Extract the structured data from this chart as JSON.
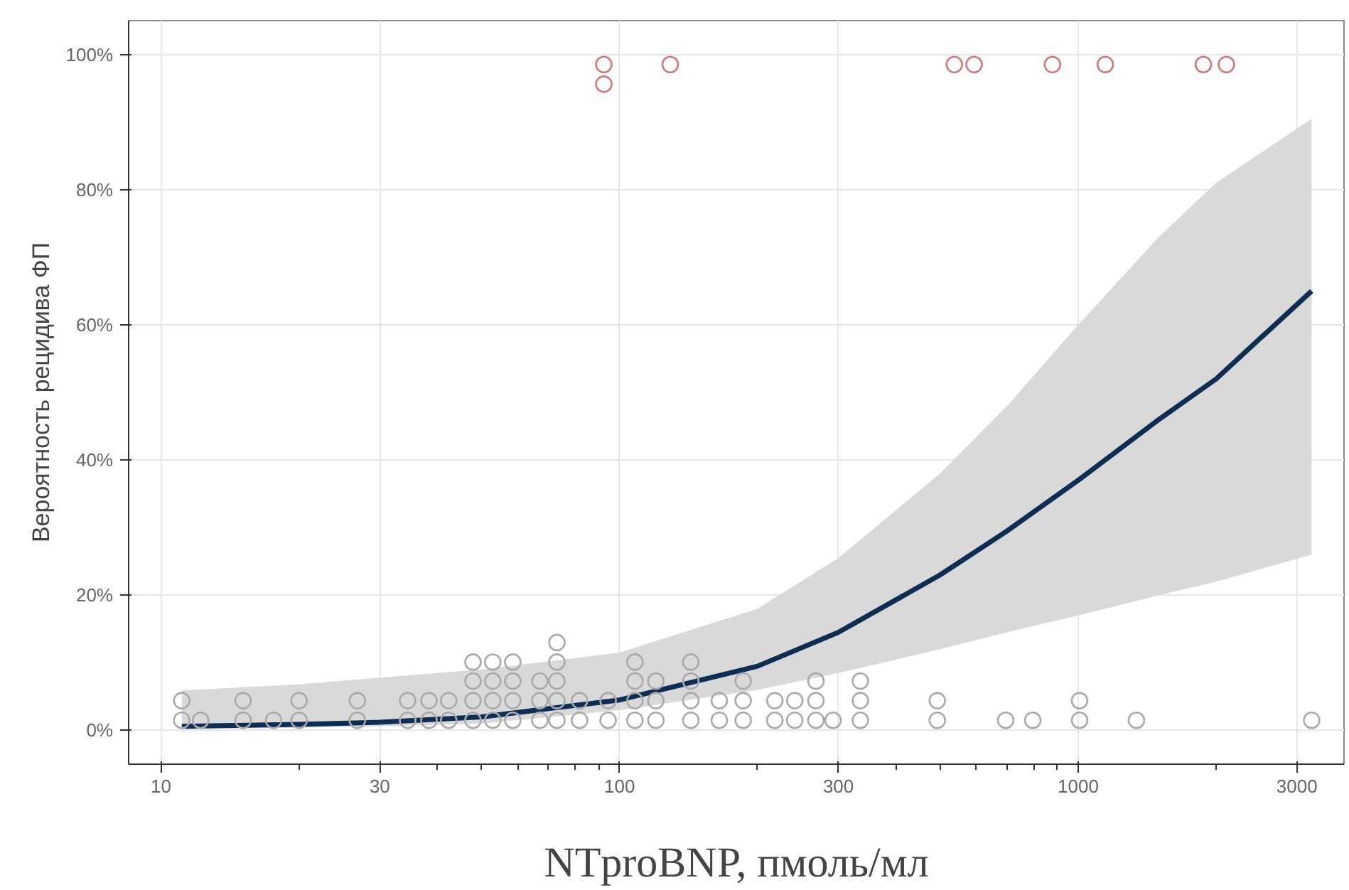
{
  "chart_data": {
    "type": "scatter",
    "xlabel": "NTproBNP, пмоль/мл",
    "ylabel": "Вероятность рецидива ФП",
    "log": "x",
    "grid": true,
    "xlim": [
      8.5,
      3800
    ],
    "xticks": [
      10,
      30,
      100,
      300,
      1000,
      3000,
      {
        "value": 20,
        "label": null
      },
      {
        "value": 40,
        "label": null
      },
      {
        "value": 50,
        "label": null
      },
      {
        "value": 60,
        "label": null
      },
      {
        "value": 70,
        "label": null
      },
      {
        "value": 80,
        "label": null
      },
      {
        "value": 90,
        "label": null
      },
      {
        "value": 200,
        "label": null
      },
      {
        "value": 400,
        "label": null
      },
      {
        "value": 500,
        "label": null
      },
      {
        "value": 600,
        "label": null
      },
      {
        "value": 700,
        "label": null
      },
      {
        "value": 800,
        "label": null
      },
      {
        "value": 900,
        "label": null
      },
      {
        "value": 2000,
        "label": null
      }
    ],
    "ylim": [
      -5,
      105
    ],
    "yticks": [
      {
        "value": 0,
        "label": "0%"
      },
      {
        "value": 20,
        "label": "20%"
      },
      {
        "value": 40,
        "label": "40%"
      },
      {
        "value": 60,
        "label": "60%"
      },
      {
        "value": 80,
        "label": "80%"
      },
      {
        "value": 100,
        "label": "100%"
      }
    ],
    "series": [
      {
        "color": "#aaaaaa",
        "marker": "circle",
        "x": [
          11.1,
          11.1,
          12.2,
          15.1,
          15.1,
          17.6,
          20.0,
          20.0,
          26.8,
          26.8,
          34.5,
          34.5,
          38.4,
          38.4,
          42.4,
          42.4,
          47.9,
          47.9,
          47.9,
          47.9,
          52.9,
          52.9,
          52.9,
          52.9,
          58.5,
          58.5,
          58.5,
          58.5,
          67.0,
          67.0,
          67.0,
          73.0,
          73.0,
          73.0,
          73.0,
          73.0,
          81.8,
          81.8,
          94.4,
          94.4,
          108,
          108,
          108,
          108,
          120,
          120,
          120,
          143,
          143,
          143,
          143,
          165,
          165,
          186,
          186,
          186,
          218,
          218,
          241,
          241,
          268,
          268,
          268,
          292,
          335,
          335,
          335,
          493,
          493,
          695,
          796,
          1007,
          1007,
          1340,
          3230
        ],
        "values": [
          1.5,
          4.4,
          1.5,
          1.5,
          4.4,
          1.5,
          1.5,
          4.4,
          1.5,
          4.4,
          1.5,
          4.4,
          1.5,
          4.4,
          1.5,
          4.4,
          1.5,
          4.4,
          7.3,
          10.1,
          1.5,
          4.4,
          7.3,
          10.1,
          1.5,
          4.4,
          7.3,
          10.1,
          1.5,
          4.4,
          7.3,
          1.5,
          4.4,
          7.3,
          10.1,
          13.0,
          1.5,
          4.4,
          1.5,
          4.4,
          1.5,
          4.4,
          7.3,
          10.1,
          1.5,
          4.4,
          7.3,
          1.5,
          4.4,
          7.3,
          10.1,
          1.5,
          4.4,
          1.5,
          4.4,
          7.3,
          1.5,
          4.4,
          1.5,
          4.4,
          1.5,
          4.4,
          7.3,
          1.5,
          1.5,
          4.4,
          7.3,
          1.5,
          4.4,
          1.5,
          1.5,
          1.5,
          4.4,
          1.5,
          1.5
        ]
      },
      {
        "color": "#d47a7a",
        "marker": "circle",
        "x": [
          92.4,
          92.4,
          129,
          537,
          593,
          879,
          1146,
          1875,
          2105
        ],
        "values": [
          98.5,
          95.6,
          98.5,
          98.5,
          98.5,
          98.5,
          98.5,
          98.5,
          98.5
        ]
      },
      {
        "type": "line",
        "color": "#0d2d52",
        "marker": "none",
        "x": [
          11.1,
          20,
          30,
          50,
          100,
          200,
          300,
          500,
          700,
          1000,
          1500,
          2000,
          3230
        ],
        "values": [
          0.6,
          0.9,
          1.2,
          2.0,
          4.5,
          9.5,
          14.5,
          23,
          29.5,
          37,
          46,
          52,
          65
        ],
        "lower": [
          0.2,
          0.4,
          0.6,
          1.0,
          3.0,
          6.0,
          8.5,
          12,
          14.5,
          17,
          20,
          22,
          26
        ],
        "upper": [
          5.9,
          6.8,
          7.8,
          9.0,
          11.5,
          18,
          25.5,
          38,
          48,
          60,
          73,
          81,
          90.5
        ]
      }
    ]
  }
}
